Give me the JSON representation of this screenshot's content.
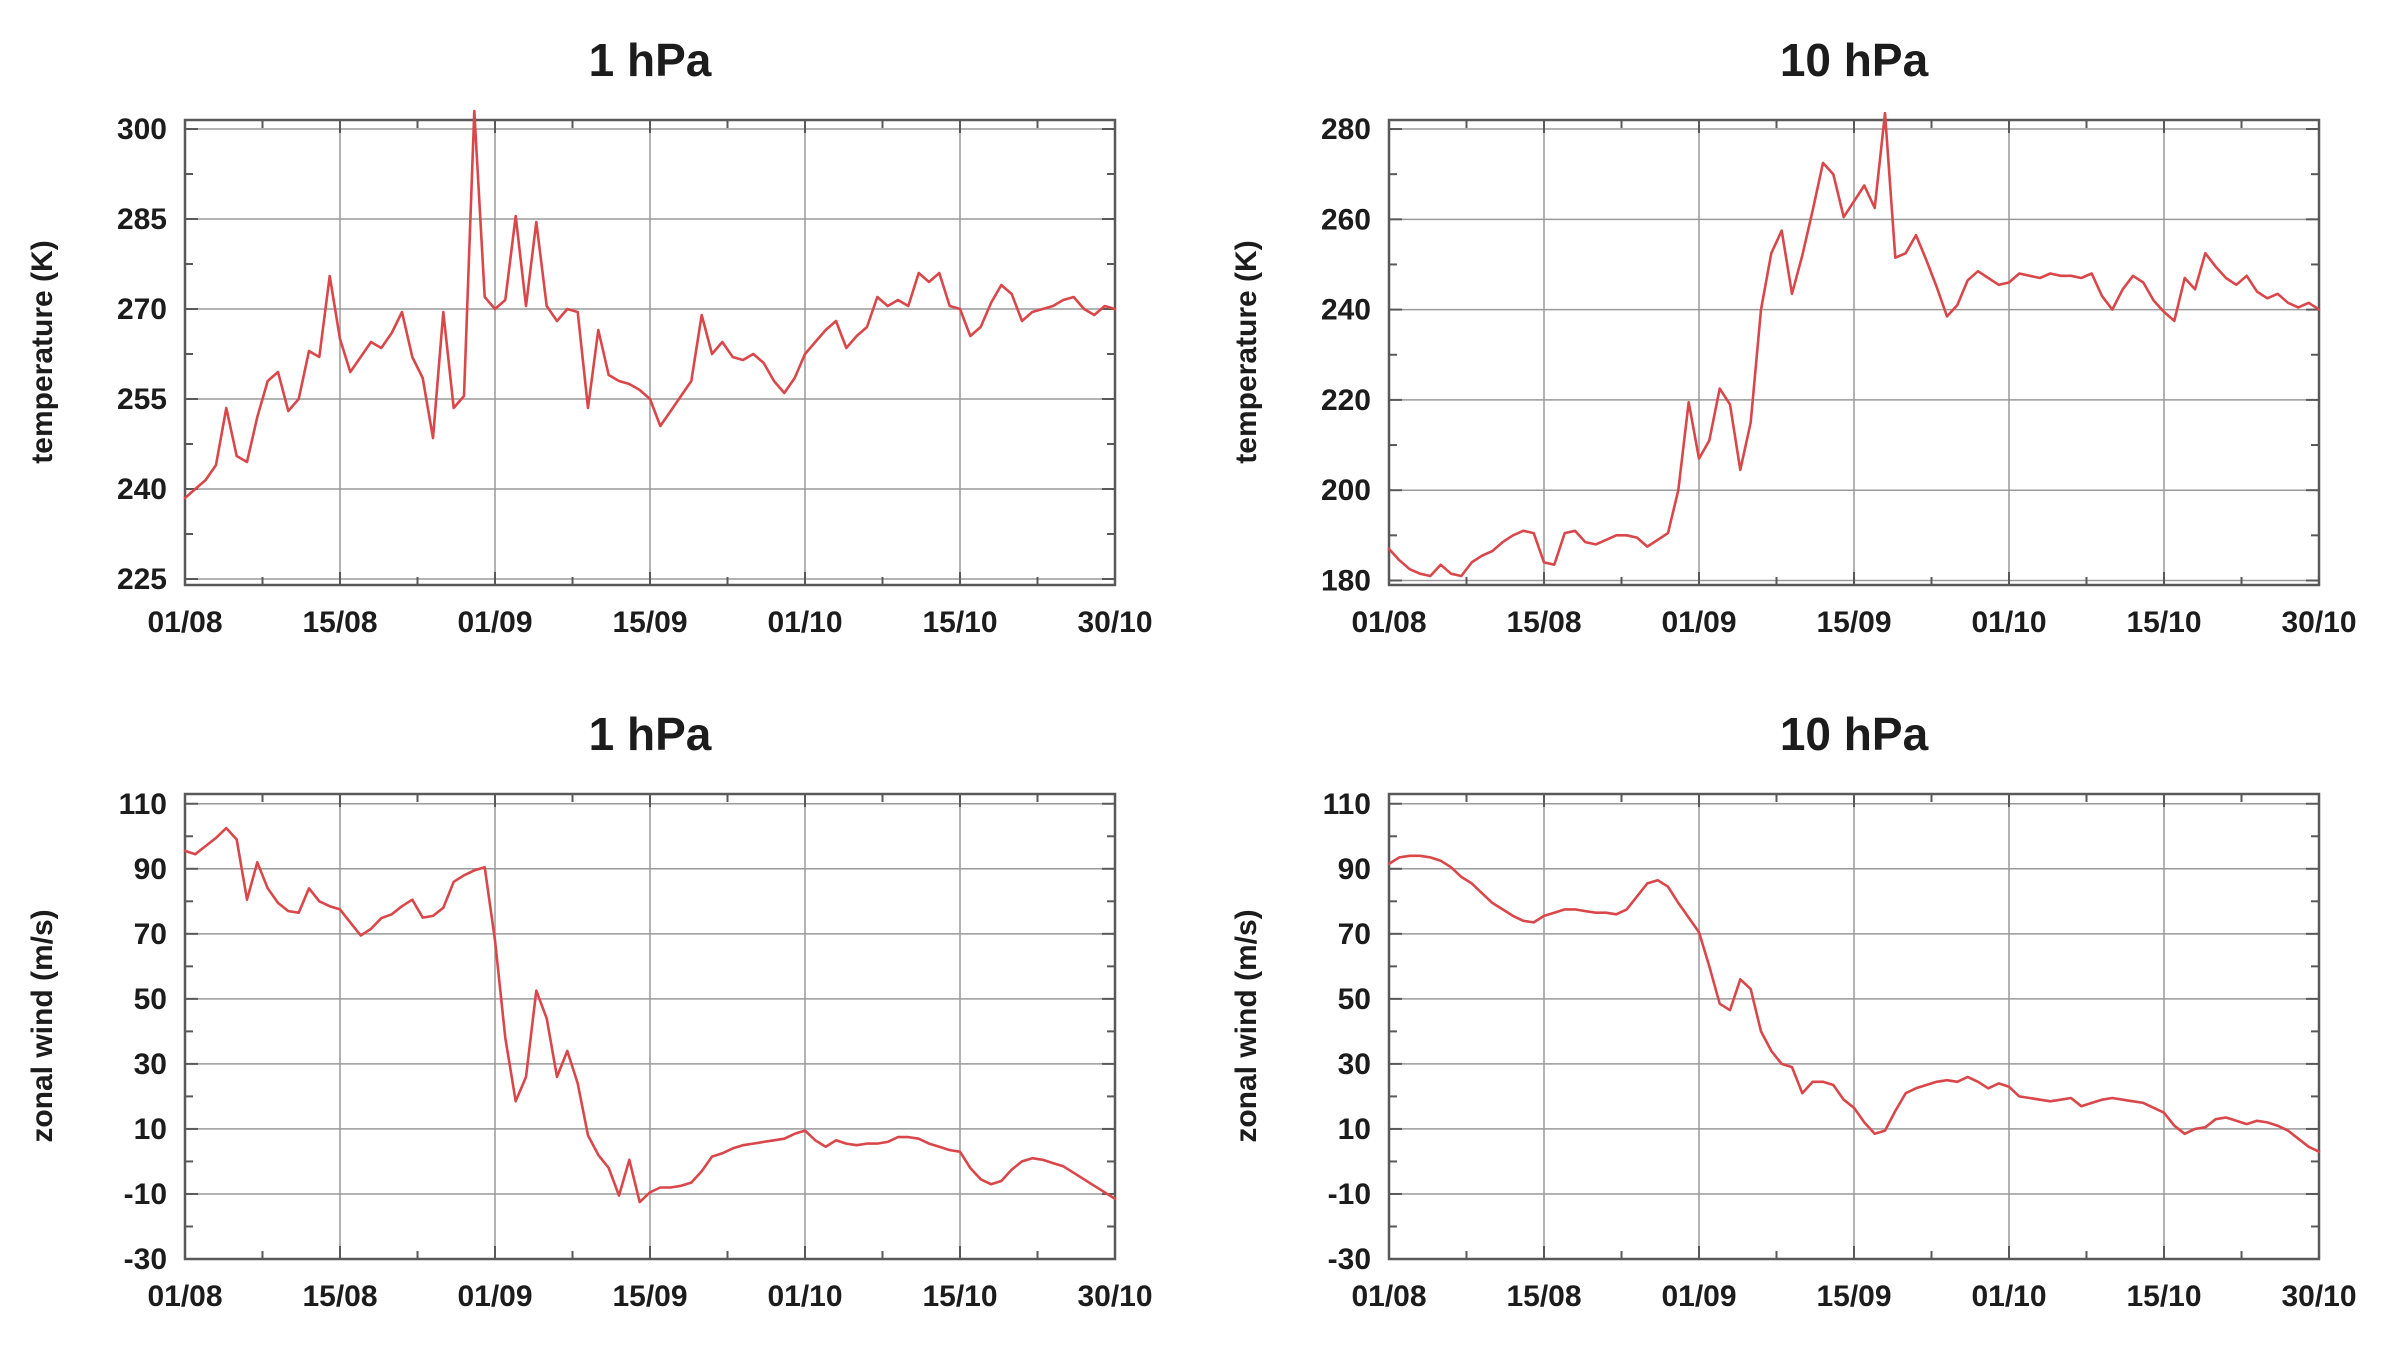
{
  "style": {
    "background": "#ffffff",
    "line_color": "#d9474a",
    "grid_color": "#9a9a9a",
    "border_color": "#595959",
    "text_color": "#1c1c1c"
  },
  "chart_data": [
    {
      "id": "temperature-1hpa",
      "type": "line",
      "title": "1 hPa",
      "ylabel": "temperature (K)",
      "xlabel": "",
      "grid": true,
      "legend": "none",
      "x_tick_labels": [
        "01/08",
        "15/08",
        "01/09",
        "15/09",
        "01/10",
        "15/10",
        "30/10"
      ],
      "y_tick_values": [
        225,
        240,
        255,
        270,
        285,
        300
      ],
      "ylim": [
        224,
        301.5
      ],
      "series": [
        {
          "name": "temperature",
          "color": "#d9474a",
          "values": [
            238.5,
            240,
            241.5,
            244,
            253.5,
            245.5,
            244.5,
            252,
            258,
            259.5,
            253,
            255,
            263,
            262,
            275.5,
            265,
            259.5,
            262,
            264.5,
            263.5,
            266,
            269.5,
            262,
            258.5,
            248.5,
            269.5,
            253.5,
            255.5,
            303,
            272,
            270,
            271.5,
            285.5,
            270.5,
            284.5,
            270.5,
            268,
            270,
            269.5,
            253.5,
            266.5,
            259,
            258,
            257.5,
            256.5,
            255,
            250.5,
            253,
            255.5,
            258,
            269,
            262.5,
            264.5,
            262,
            261.5,
            262.5,
            261,
            258,
            256,
            258.5,
            262.5,
            264.5,
            266.5,
            268,
            263.5,
            265.5,
            267,
            272,
            270.5,
            271.5,
            270.5,
            276,
            274.5,
            276,
            270.5,
            270,
            265.5,
            267,
            271,
            274,
            272.5,
            268,
            269.5,
            270,
            270.5,
            271.5,
            272,
            270,
            269,
            270.5,
            270
          ]
        }
      ]
    },
    {
      "id": "temperature-10hpa",
      "type": "line",
      "title": "10 hPa",
      "ylabel": "temperature (K)",
      "xlabel": "",
      "grid": true,
      "legend": "none",
      "x_tick_labels": [
        "01/08",
        "15/08",
        "01/09",
        "15/09",
        "01/10",
        "15/10",
        "30/10"
      ],
      "y_tick_values": [
        180,
        200,
        220,
        240,
        260,
        280
      ],
      "ylim": [
        179,
        282
      ],
      "series": [
        {
          "name": "temperature",
          "color": "#d9474a",
          "values": [
            187,
            184.5,
            182.5,
            181.5,
            181,
            183.5,
            181.5,
            181,
            184,
            185.5,
            186.5,
            188.5,
            190,
            191,
            190.5,
            184,
            183.5,
            190.5,
            191,
            188.5,
            188,
            189,
            190,
            190,
            189.5,
            187.5,
            189,
            190.5,
            200,
            219.5,
            207,
            211,
            222.5,
            219,
            204.5,
            215,
            240,
            252.5,
            257.5,
            243.5,
            252,
            262,
            272.5,
            270,
            260.5,
            264,
            267.5,
            262.5,
            283.5,
            251.5,
            252.5,
            256.5,
            251,
            245,
            238.5,
            241,
            246.5,
            248.5,
            247,
            245.5,
            246,
            248,
            247.5,
            247,
            248,
            247.5,
            247.5,
            247,
            248,
            243,
            240,
            244.5,
            247.5,
            246,
            242,
            239.5,
            237.5,
            247,
            244.5,
            252.5,
            249.5,
            247,
            245.5,
            247.5,
            244,
            242.5,
            243.5,
            241.5,
            240.5,
            241.5,
            240
          ]
        }
      ]
    },
    {
      "id": "zonal-wind-1hpa",
      "type": "line",
      "title": "1 hPa",
      "ylabel": "zonal wind (m/s)",
      "xlabel": "",
      "grid": true,
      "legend": "none",
      "x_tick_labels": [
        "01/08",
        "15/08",
        "01/09",
        "15/09",
        "01/10",
        "15/10",
        "30/10"
      ],
      "y_tick_values": [
        -30,
        -10,
        10,
        30,
        50,
        70,
        90,
        110
      ],
      "ylim": [
        -30,
        113
      ],
      "series": [
        {
          "name": "zonal wind",
          "color": "#d9474a",
          "values": [
            95.5,
            94.5,
            97,
            99.5,
            102.5,
            99,
            80.5,
            92,
            84,
            79.5,
            77,
            76.5,
            84,
            80,
            78.5,
            77.5,
            73.5,
            69.5,
            71.5,
            74.8,
            76,
            78.5,
            80.5,
            75,
            75.5,
            78,
            86,
            88,
            89.5,
            90.5,
            68,
            38,
            18.5,
            26,
            52.5,
            44,
            26,
            34,
            24,
            8,
            2,
            -2,
            -10.5,
            0.5,
            -12.5,
            -9.5,
            -8,
            -8,
            -7.5,
            -6.5,
            -3,
            1.5,
            2.5,
            4,
            5,
            5.5,
            6,
            6.5,
            7,
            8.5,
            9.5,
            6.5,
            4.5,
            6.5,
            5.5,
            5,
            5.5,
            5.5,
            6,
            7.5,
            7.5,
            7,
            5.5,
            4.5,
            3.5,
            3,
            -2,
            -5.5,
            -7,
            -6,
            -2.5,
            0,
            1,
            0.5,
            -0.5,
            -1.5,
            -3.5,
            -5.5,
            -7.5,
            -9.5,
            -11.5
          ]
        }
      ]
    },
    {
      "id": "zonal-wind-10hpa",
      "type": "line",
      "title": "10 hPa",
      "ylabel": "zonal wind (m/s)",
      "xlabel": "",
      "grid": true,
      "legend": "none",
      "x_tick_labels": [
        "01/08",
        "15/08",
        "01/09",
        "15/09",
        "01/10",
        "15/10",
        "30/10"
      ],
      "y_tick_values": [
        -30,
        -10,
        10,
        30,
        50,
        70,
        90,
        110
      ],
      "ylim": [
        -30,
        113
      ],
      "series": [
        {
          "name": "zonal wind",
          "color": "#d9474a",
          "values": [
            91.5,
            93.5,
            94,
            94,
            93.5,
            92.5,
            90.5,
            87.5,
            85.5,
            82.5,
            79.5,
            77.5,
            75.5,
            74,
            73.5,
            75.5,
            76.5,
            77.5,
            77.5,
            77,
            76.5,
            76.5,
            76,
            77.5,
            81.5,
            85.5,
            86.5,
            84.5,
            79.5,
            75,
            70.5,
            60,
            48.5,
            46.5,
            56,
            53,
            40,
            34,
            30,
            29,
            21,
            24.5,
            24.5,
            23.5,
            19,
            16.5,
            12,
            8.5,
            9.5,
            15.5,
            21,
            22.5,
            23.5,
            24.5,
            25,
            24.5,
            26,
            24.5,
            22.5,
            24,
            23,
            20,
            19.5,
            19,
            18.5,
            19,
            19.5,
            17,
            18,
            19,
            19.5,
            19,
            18.5,
            18,
            16.5,
            15,
            11,
            8.5,
            10,
            10.5,
            13,
            13.5,
            12.5,
            11.5,
            12.5,
            12,
            11,
            9.5,
            7,
            4.5,
            3
          ]
        }
      ]
    }
  ]
}
